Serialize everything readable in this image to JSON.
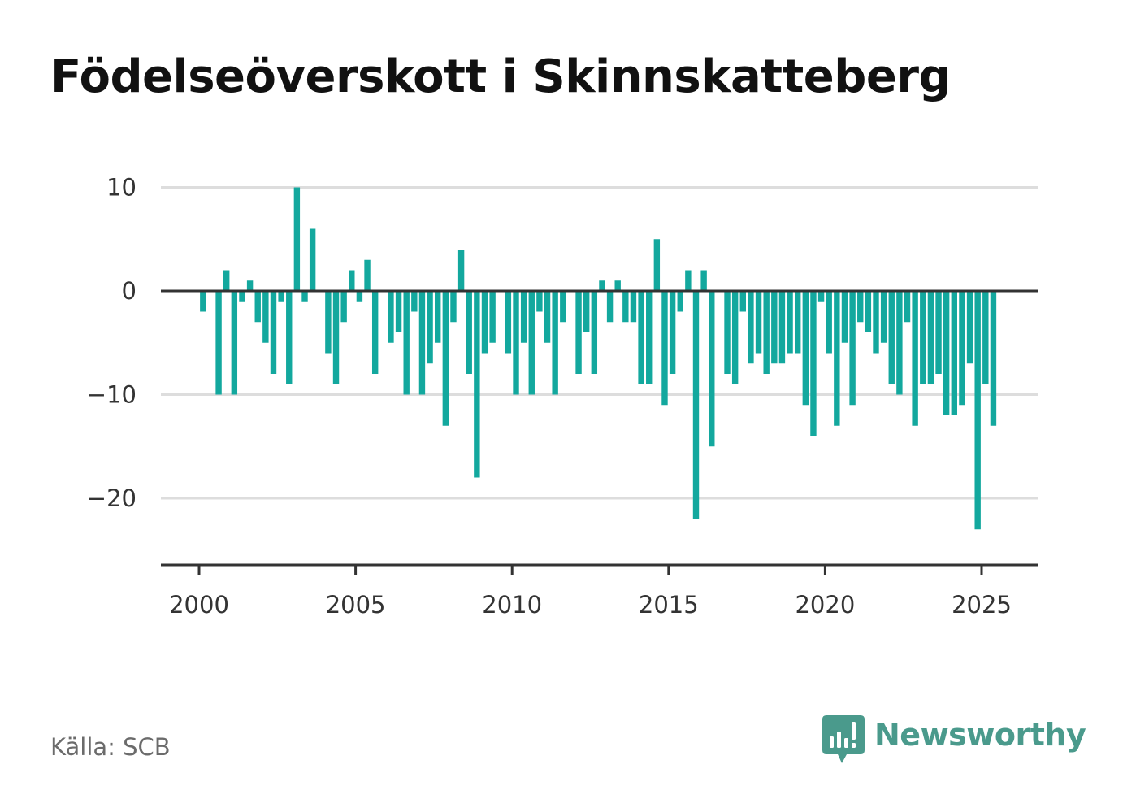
{
  "title": "Födelseöverskott i Skinnskatteberg",
  "source": "Källa: SCB",
  "brand": {
    "name": "Newsworthy",
    "color": "#4a9a8c",
    "icon": "bar-chart-speech-bubble-icon"
  },
  "colors": {
    "bar": "#13a89e",
    "grid": "#dddddd",
    "axis": "#333333",
    "text": "#333333"
  },
  "chart_data": {
    "type": "bar",
    "title": "Födelseöverskott i Skinnskatteberg",
    "xlabel": "",
    "ylabel": "",
    "grid": true,
    "ylim": [
      -26.5,
      10
    ],
    "xlim": [
      1999.75,
      2026.8
    ],
    "yticks": [
      10,
      0,
      -10,
      -20
    ],
    "ytick_labels": [
      "10",
      "0",
      "−10",
      "−20"
    ],
    "xticks": [
      2000,
      2005,
      2010,
      2015,
      2020,
      2025
    ],
    "xtick_labels": [
      "2000",
      "2005",
      "2010",
      "2015",
      "2020",
      "2025"
    ],
    "categories": [
      "2000-Q1",
      "2000-Q2",
      "2000-Q3",
      "2000-Q4",
      "2001-Q1",
      "2001-Q2",
      "2001-Q3",
      "2001-Q4",
      "2002-Q1",
      "2002-Q2",
      "2002-Q3",
      "2002-Q4",
      "2003-Q1",
      "2003-Q2",
      "2003-Q3",
      "2003-Q4",
      "2004-Q1",
      "2004-Q2",
      "2004-Q3",
      "2004-Q4",
      "2005-Q1",
      "2005-Q2",
      "2005-Q3",
      "2005-Q4",
      "2006-Q1",
      "2006-Q2",
      "2006-Q3",
      "2006-Q4",
      "2007-Q1",
      "2007-Q2",
      "2007-Q3",
      "2007-Q4",
      "2008-Q1",
      "2008-Q2",
      "2008-Q3",
      "2008-Q4",
      "2009-Q1",
      "2009-Q2",
      "2009-Q3",
      "2009-Q4",
      "2010-Q1",
      "2010-Q2",
      "2010-Q3",
      "2010-Q4",
      "2011-Q1",
      "2011-Q2",
      "2011-Q3",
      "2011-Q4",
      "2012-Q1",
      "2012-Q2",
      "2012-Q3",
      "2012-Q4",
      "2013-Q1",
      "2013-Q2",
      "2013-Q3",
      "2013-Q4",
      "2014-Q1",
      "2014-Q2",
      "2014-Q3",
      "2014-Q4",
      "2015-Q1",
      "2015-Q2",
      "2015-Q3",
      "2015-Q4",
      "2016-Q1",
      "2016-Q2",
      "2016-Q3",
      "2016-Q4",
      "2017-Q1",
      "2017-Q2",
      "2017-Q3",
      "2017-Q4",
      "2018-Q1",
      "2018-Q2",
      "2018-Q3",
      "2018-Q4",
      "2019-Q1",
      "2019-Q2",
      "2019-Q3",
      "2019-Q4",
      "2020-Q1",
      "2020-Q2",
      "2020-Q3",
      "2020-Q4",
      "2021-Q1",
      "2021-Q2",
      "2021-Q3",
      "2021-Q4",
      "2022-Q1",
      "2022-Q2",
      "2022-Q3",
      "2022-Q4",
      "2023-Q1",
      "2023-Q2",
      "2023-Q3",
      "2023-Q4",
      "2024-Q1",
      "2024-Q2",
      "2024-Q3",
      "2024-Q4",
      "2025-Q1",
      "2025-Q2"
    ],
    "values": [
      -2,
      0,
      -10,
      2,
      -10,
      -1,
      1,
      -3,
      -5,
      -8,
      -1,
      -9,
      10,
      -1,
      6,
      0,
      -6,
      -9,
      -3,
      2,
      -1,
      3,
      -8,
      0,
      -5,
      -4,
      -10,
      -2,
      -10,
      -7,
      -5,
      -13,
      -3,
      4,
      -8,
      -18,
      -6,
      -5,
      0,
      -6,
      -10,
      -5,
      -10,
      -2,
      -5,
      -10,
      -3,
      0,
      -8,
      -4,
      -8,
      1,
      -3,
      1,
      -3,
      -3,
      -9,
      -9,
      5,
      -11,
      -8,
      -2,
      2,
      -22,
      2,
      -15,
      0,
      -8,
      -9,
      -2,
      -7,
      -6,
      -8,
      -7,
      -7,
      -6,
      -6,
      -11,
      -14,
      -1,
      -6,
      -13,
      -5,
      -11,
      -3,
      -4,
      -6,
      -5,
      -9,
      -10,
      -3,
      -13,
      -9,
      -9,
      -8,
      -12,
      -12,
      -11,
      -7,
      -23,
      -9,
      -13
    ]
  }
}
